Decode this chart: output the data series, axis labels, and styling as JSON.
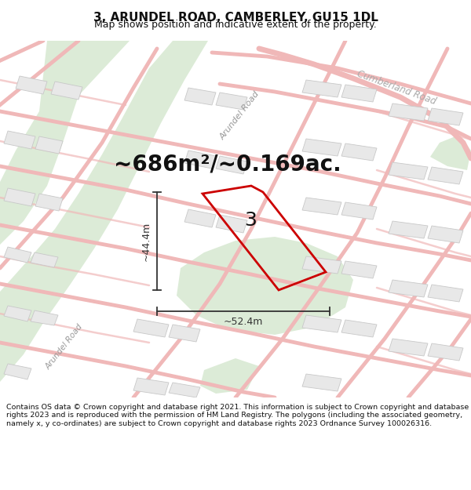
{
  "title": "3, ARUNDEL ROAD, CAMBERLEY, GU15 1DL",
  "subtitle": "Map shows position and indicative extent of the property.",
  "area_text": "~686m²/~0.169ac.",
  "dim_height": "~44.4m",
  "dim_width": "~52.4m",
  "label": "3",
  "footer": "Contains OS data © Crown copyright and database right 2021. This information is subject to Crown copyright and database rights 2023 and is reproduced with the permission of HM Land Registry. The polygons (including the associated geometry, namely x, y co-ordinates) are subject to Crown copyright and database rights 2023 Ordnance Survey 100026316.",
  "map_bg": "#ffffff",
  "road_color": "#f0b8b8",
  "road_lw_main": 6.0,
  "road_lw_minor": 3.0,
  "building_fill": "#e8e8e8",
  "building_edge": "#c8c8c8",
  "green_fill": "#d6e8d0",
  "plot_color": "#cc0000",
  "dim_line_color": "#333333",
  "text_color": "#111111",
  "road_label_color": "#999999",
  "cumberland_label_color": "#aaaaaa",
  "title_fontsize": 11,
  "subtitle_fontsize": 9,
  "area_fontsize": 20,
  "label_fontsize": 18,
  "dim_fontsize": 9,
  "footer_fontsize": 6.8,
  "road_label_fontsize": 8.0
}
